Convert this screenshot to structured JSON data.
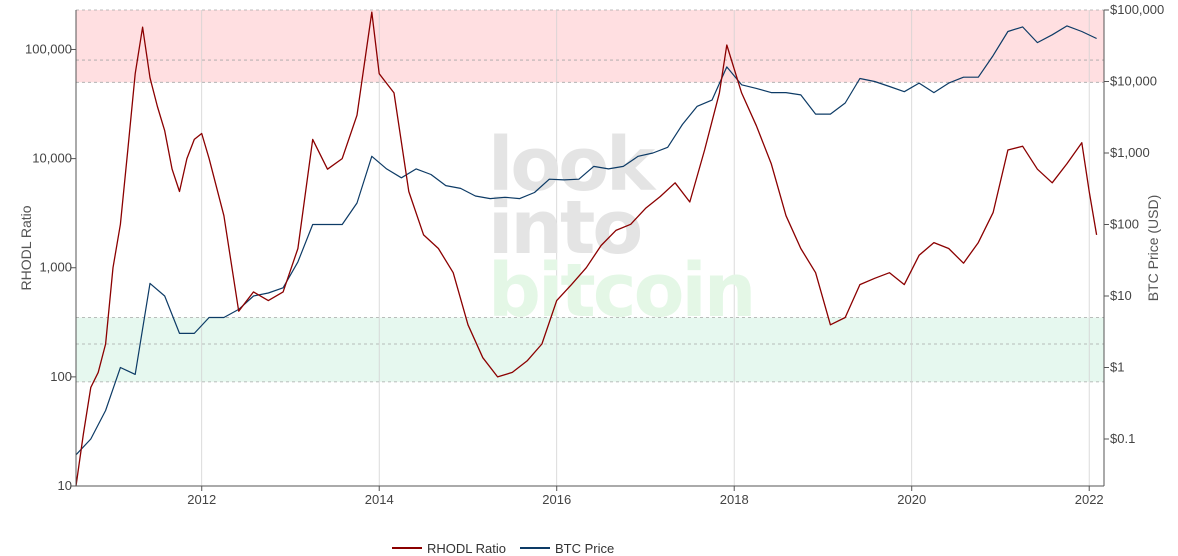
{
  "watermark": {
    "line1": "look",
    "line2": "into",
    "line3": "bitcoin"
  },
  "legend": [
    {
      "label": "RHODL Ratio",
      "color": "#8b0000"
    },
    {
      "label": "BTC Price",
      "color": "#0d3b66"
    }
  ],
  "colors": {
    "rhodl": "#8b0000",
    "price": "#0d3b66",
    "red_band": "#ffdfe1",
    "green_band": "#e6f8ef"
  },
  "chart_data": {
    "type": "line",
    "title": "",
    "xlabel": "",
    "ylabel_left": "RHODL Ratio",
    "ylabel_right": "BTC Price (USD)",
    "x_range": [
      "2010-08",
      "2022-03"
    ],
    "x_ticks": [
      {
        "label": "2012",
        "year": 2012
      },
      {
        "label": "2014",
        "year": 2014
      },
      {
        "label": "2016",
        "year": 2016
      },
      {
        "label": "2018",
        "year": 2018
      },
      {
        "label": "2020",
        "year": 2020
      },
      {
        "label": "2022",
        "year": 2022
      }
    ],
    "y_left": {
      "scale": "log",
      "range": [
        10,
        230000
      ],
      "ticks": [
        {
          "label": "100,000",
          "value": 100000
        },
        {
          "label": "10,000",
          "value": 10000
        },
        {
          "label": "1,000",
          "value": 1000
        },
        {
          "label": "100",
          "value": 100
        },
        {
          "label": "10",
          "value": 10
        }
      ]
    },
    "y_right": {
      "scale": "log",
      "range": [
        0.022,
        100000
      ],
      "ticks": [
        {
          "label": "$100,000",
          "value": 100000
        },
        {
          "label": "$10,000",
          "value": 10000
        },
        {
          "label": "$1,000",
          "value": 1000
        },
        {
          "label": "$100",
          "value": 100
        },
        {
          "label": "$10",
          "value": 10
        },
        {
          "label": "$1",
          "value": 1
        },
        {
          "label": "$0.1",
          "value": 0.1
        }
      ]
    },
    "bands": [
      {
        "name": "",
        "axis": "left",
        "from": 50000,
        "to": 230000,
        "mid": 80000,
        "color": "#ffdfe1"
      },
      {
        "name": "",
        "axis": "left",
        "from": 90,
        "to": 350,
        "mid": 200,
        "color": "#e6f8ef"
      }
    ],
    "grid": true,
    "legend_position": "bottom-center",
    "series": [
      {
        "name": "RHODL Ratio",
        "axis": "left",
        "color": "#8b0000",
        "x": [
          "2010-08",
          "2010-09",
          "2010-10",
          "2010-11",
          "2010-12",
          "2011-01",
          "2011-02",
          "2011-03",
          "2011-04",
          "2011-05",
          "2011-06",
          "2011-07",
          "2011-08",
          "2011-09",
          "2011-10",
          "2011-11",
          "2011-12",
          "2012-01",
          "2012-02",
          "2012-04",
          "2012-06",
          "2012-08",
          "2012-10",
          "2012-12",
          "2013-02",
          "2013-04",
          "2013-06",
          "2013-08",
          "2013-10",
          "2013-12",
          "2014-01",
          "2014-03",
          "2014-05",
          "2014-07",
          "2014-09",
          "2014-11",
          "2015-01",
          "2015-03",
          "2015-05",
          "2015-07",
          "2015-09",
          "2015-11",
          "2016-01",
          "2016-03",
          "2016-05",
          "2016-07",
          "2016-09",
          "2016-11",
          "2017-01",
          "2017-03",
          "2017-05",
          "2017-07",
          "2017-09",
          "2017-11",
          "2017-12",
          "2018-02",
          "2018-04",
          "2018-06",
          "2018-08",
          "2018-10",
          "2018-12",
          "2019-02",
          "2019-04",
          "2019-06",
          "2019-08",
          "2019-10",
          "2019-12",
          "2020-02",
          "2020-04",
          "2020-06",
          "2020-08",
          "2020-10",
          "2020-12",
          "2021-02",
          "2021-04",
          "2021-06",
          "2021-08",
          "2021-10",
          "2021-12",
          "2022-01",
          "2022-02"
        ],
        "y": [
          10,
          30,
          80,
          110,
          200,
          1000,
          2500,
          12000,
          60000,
          160000,
          55000,
          30000,
          18000,
          8000,
          5000,
          10000,
          15000,
          17000,
          10000,
          3000,
          400,
          600,
          500,
          600,
          1500,
          15000,
          8000,
          10000,
          25000,
          220000,
          60000,
          40000,
          5000,
          2000,
          1500,
          900,
          300,
          150,
          100,
          110,
          140,
          200,
          500,
          700,
          1000,
          1600,
          2200,
          2500,
          3500,
          4500,
          6000,
          4000,
          12000,
          40000,
          110000,
          40000,
          20000,
          9000,
          3000,
          1500,
          900,
          300,
          350,
          700,
          800,
          900,
          700,
          1300,
          1700,
          1500,
          1100,
          1700,
          3200,
          12000,
          13000,
          8000,
          6000,
          9000,
          14000,
          5000,
          2000
        ]
      },
      {
        "name": "BTC Price",
        "axis": "right",
        "color": "#0d3b66",
        "x": [
          "2010-08",
          "2010-10",
          "2010-12",
          "2011-02",
          "2011-04",
          "2011-06",
          "2011-08",
          "2011-10",
          "2011-12",
          "2012-02",
          "2012-04",
          "2012-06",
          "2012-08",
          "2012-10",
          "2012-12",
          "2013-02",
          "2013-04",
          "2013-06",
          "2013-08",
          "2013-10",
          "2013-12",
          "2014-02",
          "2014-04",
          "2014-06",
          "2014-08",
          "2014-10",
          "2014-12",
          "2015-02",
          "2015-04",
          "2015-06",
          "2015-08",
          "2015-10",
          "2015-12",
          "2016-02",
          "2016-04",
          "2016-06",
          "2016-08",
          "2016-10",
          "2016-12",
          "2017-02",
          "2017-04",
          "2017-06",
          "2017-08",
          "2017-10",
          "2017-12",
          "2018-02",
          "2018-04",
          "2018-06",
          "2018-08",
          "2018-10",
          "2018-12",
          "2019-02",
          "2019-04",
          "2019-06",
          "2019-08",
          "2019-10",
          "2019-12",
          "2020-02",
          "2020-04",
          "2020-06",
          "2020-08",
          "2020-10",
          "2020-12",
          "2021-02",
          "2021-04",
          "2021-06",
          "2021-08",
          "2021-10",
          "2021-12",
          "2022-02"
        ],
        "y": [
          0.06,
          0.1,
          0.25,
          1,
          0.8,
          15,
          10,
          3,
          3,
          5,
          5,
          6.5,
          10,
          11,
          13,
          30,
          100,
          100,
          100,
          200,
          900,
          600,
          450,
          600,
          500,
          350,
          320,
          250,
          230,
          240,
          230,
          280,
          430,
          420,
          430,
          650,
          600,
          650,
          900,
          1000,
          1200,
          2500,
          4500,
          5500,
          16000,
          9000,
          8000,
          7000,
          7000,
          6500,
          3500,
          3500,
          5000,
          11000,
          10000,
          8500,
          7200,
          9500,
          7000,
          9500,
          11500,
          11500,
          23000,
          50000,
          58000,
          35000,
          45000,
          60000,
          50000,
          40000
        ]
      }
    ]
  }
}
